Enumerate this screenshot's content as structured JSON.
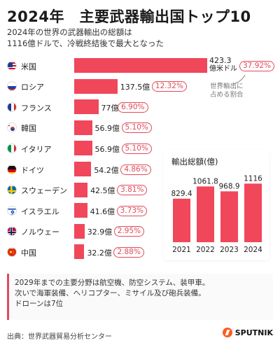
{
  "title": "2024年　主要武器輸出国トップ10",
  "subtitle_line1": "2024年の世界の武器輸出の総額は",
  "subtitle_line2": "1116億ドルで、冷戦終結後で最大となった",
  "share_note_line1": "世界輸出に",
  "share_note_line2": "占める割合",
  "chart_data": [
    {
      "type": "bar",
      "orientation": "horizontal",
      "categories": [
        "米国",
        "ロシア",
        "フランス",
        "韓国",
        "イタリア",
        "ドイツ",
        "スウェーデン",
        "イスラエル",
        "ノルウェー",
        "中国"
      ],
      "values": [
        423.3,
        137.5,
        77,
        56.9,
        56.9,
        54.2,
        42.5,
        41.6,
        32.9,
        32.2
      ],
      "value_labels": [
        "423.3",
        "137.5億",
        "77億",
        "56.9億",
        "56.9億",
        "54.2億",
        "42.5億",
        "41.6億",
        "32.9億",
        "32.2億"
      ],
      "first_value_unit": "億米ドル",
      "shares": [
        "37.92%",
        "12.32%",
        "6.90%",
        "5.10%",
        "5.10%",
        "4.86%",
        "3.81%",
        "3.73%",
        "2.95%",
        "2.88%"
      ],
      "flags": [
        "us",
        "ru",
        "fr",
        "kr",
        "it",
        "de",
        "se",
        "il",
        "no",
        "cn"
      ],
      "bar_color": "#f0475a"
    },
    {
      "type": "bar",
      "title": "輸出総額(億)",
      "categories": [
        "2021",
        "2022",
        "2023",
        "2024"
      ],
      "values": [
        829.4,
        1061.8,
        968.9,
        1116
      ],
      "value_labels": [
        "829.4",
        "1061.8",
        "968.9",
        "1116"
      ],
      "ylim": [
        0,
        1200
      ],
      "bar_color": "#f0475a"
    }
  ],
  "footer_line1": "2029年までの主要分野は航空機、防空システム、装甲車。",
  "footer_line2": "次いで海軍装備、ヘリコプター、ミサイル及び砲兵装備。",
  "footer_line3": "ドローンは7位",
  "source": "出典：世界武器貿易分析センター",
  "logo_text": "SPUTNIK"
}
